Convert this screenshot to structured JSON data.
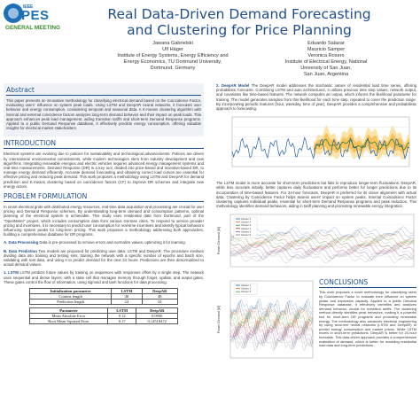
{
  "header": {
    "logo": {
      "ieee": "IEEE",
      "pes": "PES",
      "meeting": "GENERAL MEETING"
    },
    "title_line1": "Real Data-Driven Demand Forecasting",
    "title_line2": "and Clustering for Price Planning",
    "authors_left": [
      "Jawana Gabrielski",
      "Ulf Häger",
      "Institute of Energy Systems, Energy Efficiency and",
      "Energy Economics, TU Dortmund University,",
      "Dortmund, Germany"
    ],
    "authors_right": [
      "Eduardo Salazar",
      "Mauricio Samper",
      "Veronica Rosero",
      "Institute of Electrical Energy, National",
      "University of San Juan,",
      "San Juan, Argentina"
    ]
  },
  "abstract": {
    "heading": "Abstract",
    "text": "This paper presents an innovative methodology for classifying electrical demand based on the Coincidence Factor, evaluating users' influence on system peak loads. Using LSTM and DeepAR neural networks, it forecasts user behavior and energy consumption, considering temporal and seasonal data. A K-means clustering algorithm with internal and external coincidence factors analyzes long-term demand behavior and their impact on peak loads. This approach enhances peak load management, aiding transition tariffs and short-term Demand Response programs. Applied to a public Demand Response database, it effectively predicts energy consumption, offering valuable insights for electrical market stakeholders."
  },
  "introduction": {
    "heading": "INTRODUCTION",
    "text": "Electrical systems are evolving due to policies for sustainability and technological advancements. Policies are driven by international environmental commitments, while modern technologies stem from industry development and new algorithms. Integrating renewable energies and electric vehicles requires advanced energy management systems and real-time measurements. Demand Response (DR) is a key tool, divided into price-based and incentive-based DR, to manage energy demand efficiently. Accurate demand forecasting and obtaining correct load curves are essential for effective pricing and reducing peak demand. This work proposes a methodology using LSTM and DeepAR for demand prediction and K-means clustering based on coincidence factors (CF) to improve DR schemes and integrate new energy actors."
  },
  "problem": {
    "heading": "PROBLEM FORMULATION",
    "text": "In smart electrical grids with distributed energy resources, real-time data acquisition and processing are crucial for user pricing and Demand Response schemes. By understanding long-term demand and consumption patterns, optimal planning of the electrical system is achievable. This study uses residential data from Dortmund, part of the \"OpenMeter\" project, which includes consumption data from various German cities. To respond to service provider pricing and incentives, it is necessary to predict user consumption for real-time incentives and identify typical behaviors influencing system peaks for long-term pricing. This work proposes a methodology addressing both approaches, building a comprehensive database for DR programs.",
    "step_a_label": "A. Data Processing",
    "step_a_text": "Data is pre-processed to remove errors and normalize values, optimizing it for learning.",
    "step_b_label": "B. Data Prediction",
    "step_b_text": "Two models are proposed for predicting user data: LSTM and DeepAR. The procedure involves dividing data into training and testing sets, training the network with a specific number of epochs and batch size, validating with test data, and using it to predict demand for the next 24 hours. Predictions are then denormalized to actual demand values.",
    "step_1_label": "1. LSTM",
    "step_1_text": "LSTM predicts future values by training on sequences with responses offset by a single step. The network uses sequential and dense layers, with a state cell that manages memory through forget, update, and output gates. These gates control the flow of information, using sigmoid and tanh functions for data processing."
  },
  "table1": {
    "rows": [
      [
        "Initialization parameter",
        "LSTM",
        "DeepAR"
      ],
      [
        "Context length",
        "48",
        "48"
      ],
      [
        "Prediction length",
        "24",
        "24"
      ]
    ]
  },
  "table2": {
    "rows": [
      [
        "Parameter",
        "LSTM",
        "DeepAR"
      ],
      [
        "Mean Absolute Error",
        "0.12",
        "0.0956"
      ],
      [
        "Root Mean Squared Error",
        "0.17",
        "0.14518472"
      ]
    ]
  },
  "right_column": {
    "deepar_label": "2. DeepAR Model",
    "deepar_text": "The DeepAR model addresses the stochastic nature of residential load time series, offering probabilistic forecasts. Combining LSTM and auto architectures, it utilizes previous time step values, network output, and covariates like time-based features. The network computes an output, which informs the likelihood parameter for training. The model generates samples from this likelihood for each time step, repeated to cover the prediction range. By incorporating periodic features (hour, weekday, time of year), DeepAR provides a comprehensive and probabilistic approach to forecasting.",
    "result_text": "The LSTM model is more accurate for short-term predictions but fails to reproduce longer-term fluctuations. DeepAR, while less accurate initially, better captures daily fluctuations and performs better for longer predictions due to its incorporation of time-based features. For 24-hour forecasts, DeepAR is preferred for its closer alignment with actual data. Clustering by Coincidence Factor helps assess users' impact on system peaks. Internal Coincidence Factor clustering captures individual peaks, essential for short-term Demand Response programs and peak reduction. This methodology identifies demand behaviors, aiding in tariff planning and promoting renewable energy integration.",
    "conclusions_heading": "CONCLUSIONS",
    "conclusions_text": "This work proposes a novel methodology for classifying users by Coincidence Factor to evaluate their influence on system peaks and expansion capacity. Applied to a public Demand Response database, it effectively identifies and analyzes demand behavior, crucial for transition tariffs. The clustering method directly identifies peak behaviors, making it a powerful tool for short-term DR programs and promoting renewable energy. The methodology also advances electrical engineering by using recurrent neural networks (LSTM and DeepAR) to predict energy consumption and market prices. While LSTM excels in short-term predictions, DeepAR is better for 24-hour forecasts. This data-driven approach provides a comprehensive evaluation of demand, which is better for modeling residential load data and long-term predictions."
  },
  "charts": {
    "colors": {
      "band": "#f6b73c",
      "band_light": "#fbe2a8",
      "line": "#1e5fa8",
      "cluster1": "#1e5fa8",
      "cluster2": "#e07b2d",
      "cluster3": "#3a9a3a",
      "cluster4": "#c22f2f",
      "cluster5": "#8a5cb8",
      "cluster6": "#777777"
    },
    "legend_labels": [
      "Cluster 1",
      "Cluster 2",
      "Cluster 3",
      "Cluster 4",
      "Cluster 5",
      "Cluster 6"
    ],
    "ylabel": "Power Demand [W]"
  }
}
